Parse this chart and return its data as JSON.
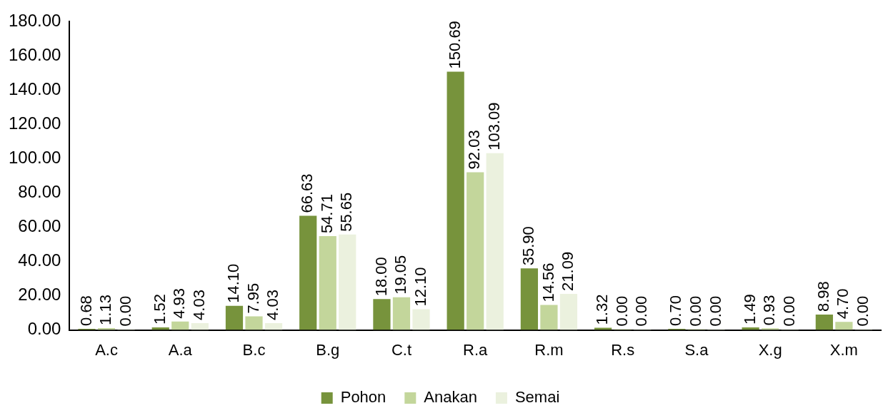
{
  "chart_data": {
    "type": "bar",
    "categories": [
      "A.c",
      "A.a",
      "B.c",
      "B.g",
      "C.t",
      "R.a",
      "R.m",
      "R.s",
      "S.a",
      "X.g",
      "X.m"
    ],
    "series": [
      {
        "name": "Pohon",
        "color": "#77933c",
        "values": [
          0.68,
          1.52,
          14.1,
          66.63,
          18.0,
          150.69,
          35.9,
          1.32,
          0.7,
          1.49,
          8.98
        ],
        "value_labels": [
          "0.68",
          "1.52",
          "14.10",
          "66.63",
          "18.00",
          "150.69",
          "35.90",
          "1.32",
          "0.70",
          "1.49",
          "8.98"
        ]
      },
      {
        "name": "Anakan",
        "color": "#c3d69b",
        "values": [
          1.13,
          4.93,
          7.95,
          54.71,
          19.05,
          92.03,
          14.56,
          0.0,
          0.0,
          0.93,
          4.7
        ],
        "value_labels": [
          "1.13",
          "4.93",
          "7.95",
          "54.71",
          "19.05",
          "92.03",
          "14.56",
          "0.00",
          "0.00",
          "0.93",
          "4.70"
        ]
      },
      {
        "name": "Semai",
        "color": "#ebf1de",
        "values": [
          0.0,
          4.03,
          4.03,
          55.65,
          12.1,
          103.09,
          21.09,
          0.0,
          0.0,
          0.0,
          0.0
        ],
        "value_labels": [
          "0.00",
          "4.03",
          "4.03",
          "55.65",
          "12.10",
          "103.09",
          "21.09",
          "0.00",
          "0.00",
          "0.00",
          "0.00"
        ]
      }
    ],
    "ylim": [
      0,
      180
    ],
    "yticks": [
      {
        "value": 0,
        "label": "0.00"
      },
      {
        "value": 20,
        "label": "20.00"
      },
      {
        "value": 40,
        "label": "40.00"
      },
      {
        "value": 60,
        "label": "60.00"
      },
      {
        "value": 80,
        "label": "80.00"
      },
      {
        "value": 100,
        "label": "100.00"
      },
      {
        "value": 120,
        "label": "120.00"
      },
      {
        "value": 140,
        "label": "140.00"
      },
      {
        "value": 160,
        "label": "160.00"
      },
      {
        "value": 180,
        "label": "180.00"
      }
    ],
    "grid": false,
    "legend": "bottom"
  }
}
